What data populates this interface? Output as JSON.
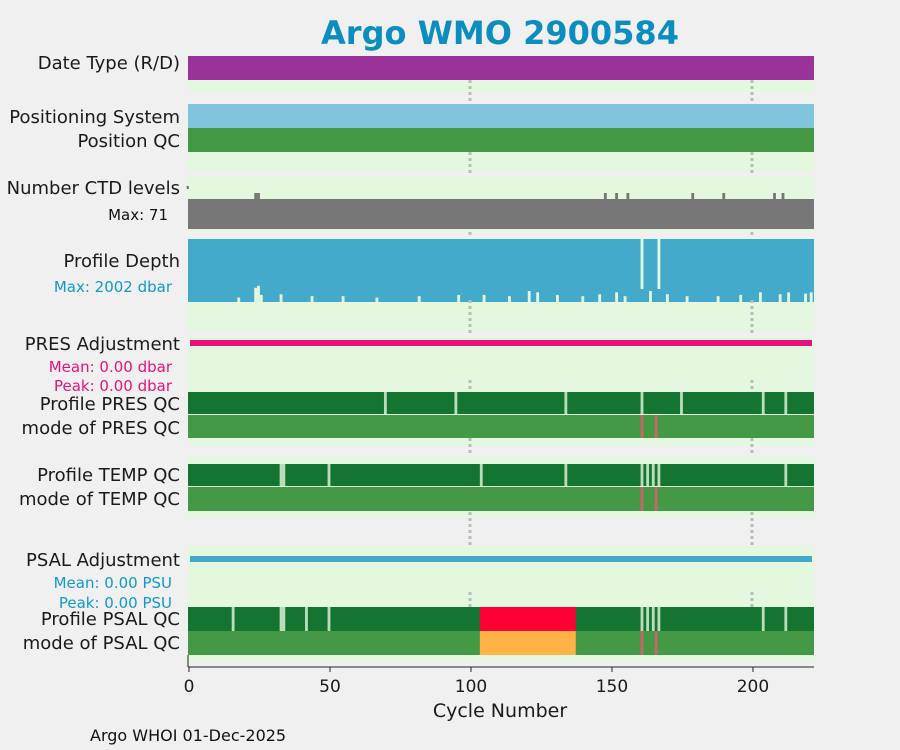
{
  "chart_data": {
    "type": "heatmap",
    "title": "Argo WMO 2900584",
    "xlabel": "Cycle Number",
    "xlim": [
      0,
      222
    ],
    "xticks": [
      0,
      50,
      100,
      150,
      200
    ],
    "tick_labels": [
      "0",
      "50",
      "100",
      "150",
      "200"
    ],
    "gridlines_at": [
      100,
      200
    ],
    "footer": "Argo WHOI 01-Dec-2025",
    "colors": {
      "panel_bg": "#e3f8df",
      "date_type": "#993399",
      "positioning": "#80c4de",
      "position_qc": "#449944",
      "ctd": "#777777",
      "depth": "#44aacc",
      "pres_adj": "#e8117f",
      "good_dark": "#137530",
      "good": "#449944",
      "bad": "#cc6666",
      "gap": "#bbddbb",
      "psal_adj": "#44aacc",
      "psal_bad": "#ff0033",
      "psal_probably_bad": "#ffb347",
      "title": "#0b8dc0",
      "depth_text": "#1199cc",
      "pres_text": "#e8117f",
      "psal_text": "#1199cc"
    },
    "rows": {
      "date_type": {
        "label": "Date Type (R/D)"
      },
      "positioning": {
        "label": "Positioning System"
      },
      "position_qc": {
        "label": "Position QC"
      },
      "ctd": {
        "label": "Number CTD levels",
        "max_label": "Max: 71"
      },
      "depth": {
        "label": "Profile Depth",
        "max_label": "Max: 2002 dbar"
      },
      "pres_adj": {
        "label": "PRES Adjustment",
        "mean_label": "Mean: 0.00 dbar",
        "peak_label": "Peak: 0.00 dbar"
      },
      "pres_qc": {
        "label": "Profile PRES QC",
        "gaps": [
          70,
          95,
          134,
          161,
          175,
          204,
          212
        ]
      },
      "pres_mode": {
        "label": "mode of PRES QC",
        "bad": [
          161,
          166
        ]
      },
      "temp_qc": {
        "label": "Profile TEMP QC",
        "gaps": [
          33,
          34,
          50,
          104,
          134,
          161,
          163,
          165,
          167,
          212
        ]
      },
      "temp_mode": {
        "label": "mode of TEMP QC",
        "bad": [
          161,
          166
        ]
      },
      "psal_adj": {
        "label": "PSAL Adjustment",
        "mean_label": "Mean: 0.00 PSU",
        "peak_label": "Peak: 0.00 PSU"
      },
      "psal_qc": {
        "label": "Profile PSAL QC",
        "gaps": [
          16,
          33,
          34,
          42,
          50,
          161,
          163,
          165,
          167,
          204,
          212
        ],
        "bad_range": [
          104,
          138
        ]
      },
      "psal_mode": {
        "label": "mode of PSAL QC",
        "bad": [
          161,
          166
        ],
        "probably_bad_range": [
          104,
          138
        ]
      }
    },
    "ctd_dips": [
      24,
      25,
      148,
      152,
      156,
      179,
      190,
      208,
      211
    ],
    "depth_gaps": [
      161,
      167
    ],
    "depth_dips": [
      {
        "x": 18,
        "v": 0.9
      },
      {
        "x": 24,
        "v": 0.75
      },
      {
        "x": 25,
        "v": 0.72
      },
      {
        "x": 26,
        "v": 0.86
      },
      {
        "x": 33,
        "v": 0.85
      },
      {
        "x": 44,
        "v": 0.88
      },
      {
        "x": 55,
        "v": 0.88
      },
      {
        "x": 67,
        "v": 0.9
      },
      {
        "x": 82,
        "v": 0.88
      },
      {
        "x": 96,
        "v": 0.86
      },
      {
        "x": 105,
        "v": 0.86
      },
      {
        "x": 114,
        "v": 0.88
      },
      {
        "x": 121,
        "v": 0.8
      },
      {
        "x": 124,
        "v": 0.82
      },
      {
        "x": 131,
        "v": 0.86
      },
      {
        "x": 140,
        "v": 0.88
      },
      {
        "x": 146,
        "v": 0.85
      },
      {
        "x": 152,
        "v": 0.82
      },
      {
        "x": 155,
        "v": 0.88
      },
      {
        "x": 164,
        "v": 0.8
      },
      {
        "x": 170,
        "v": 0.85
      },
      {
        "x": 177,
        "v": 0.88
      },
      {
        "x": 188,
        "v": 0.88
      },
      {
        "x": 196,
        "v": 0.86
      },
      {
        "x": 203,
        "v": 0.82
      },
      {
        "x": 210,
        "v": 0.85
      },
      {
        "x": 213,
        "v": 0.82
      },
      {
        "x": 219,
        "v": 0.84
      },
      {
        "x": 221,
        "v": 0.82
      }
    ]
  }
}
